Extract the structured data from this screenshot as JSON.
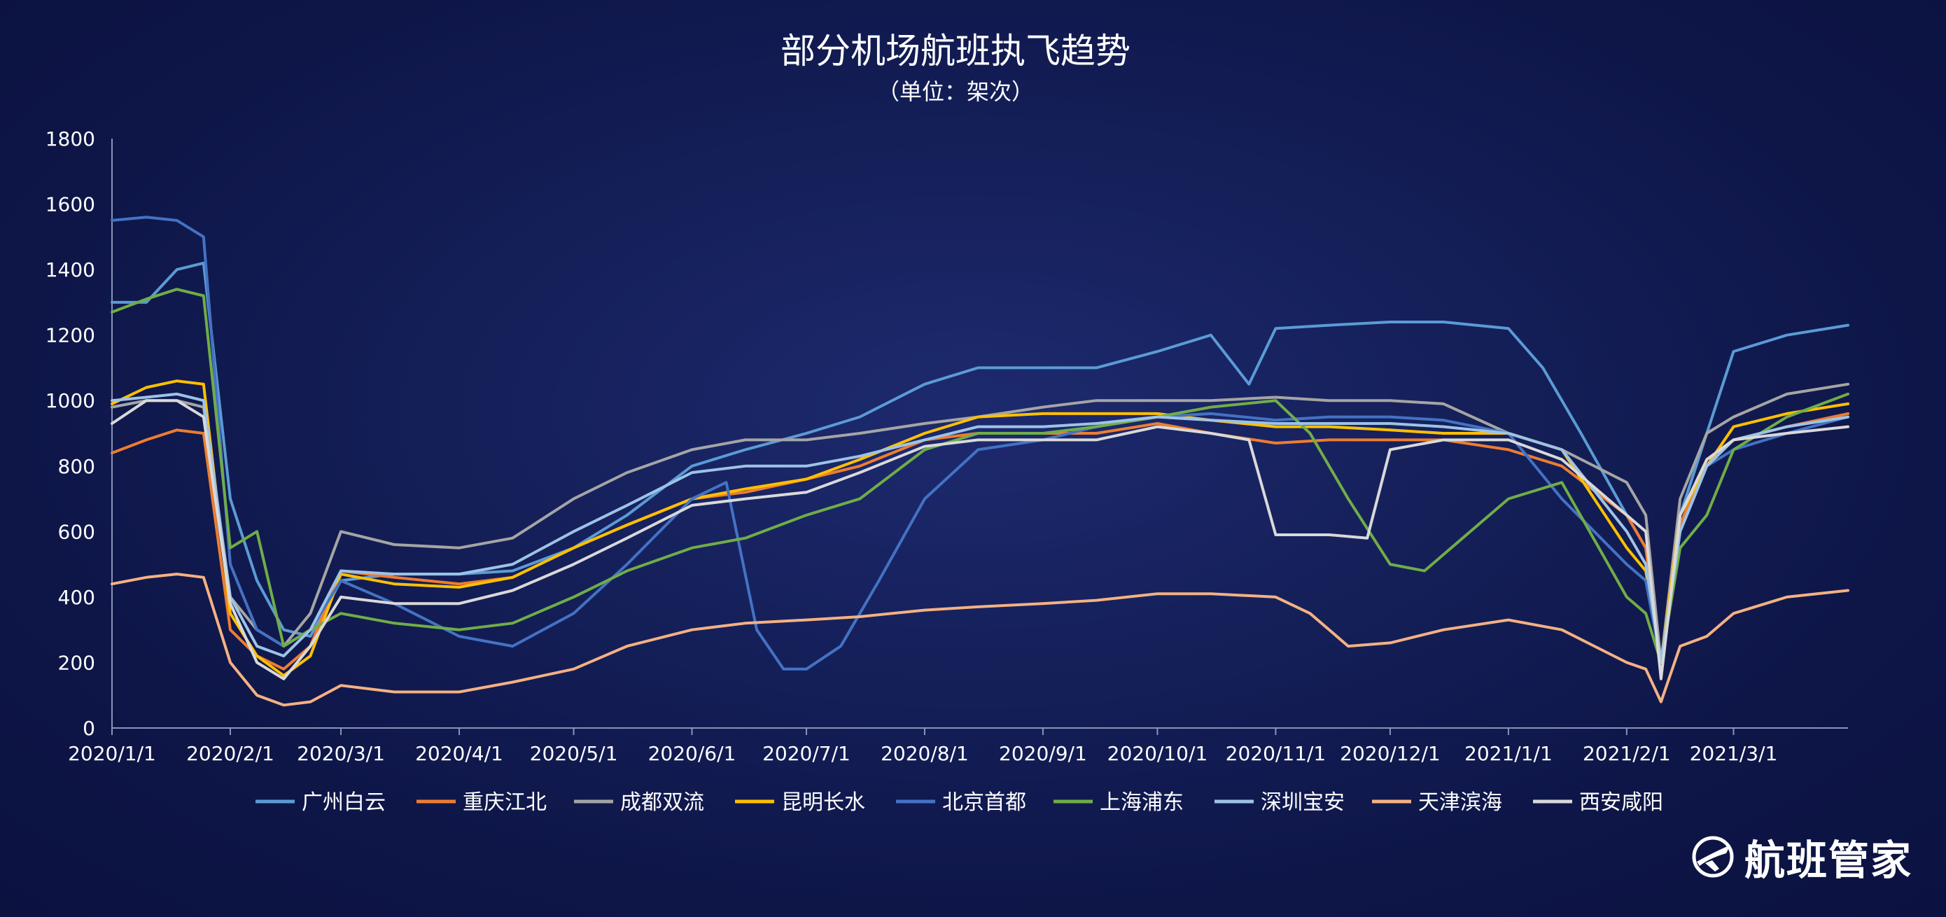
{
  "chart_data": {
    "type": "line",
    "title": "部分机场航班执飞趋势",
    "subtitle": "（单位：架次）",
    "xlabel": "",
    "ylabel": "",
    "ylim": [
      0,
      1800
    ],
    "yticks": [
      0,
      200,
      400,
      600,
      800,
      1000,
      1200,
      1400,
      1600,
      1800
    ],
    "xlim": [
      "2020-01-01",
      "2021-03-31"
    ],
    "xticks": [
      "2020/1/1",
      "2020/2/1",
      "2020/3/1",
      "2020/4/1",
      "2020/5/1",
      "2020/6/1",
      "2020/7/1",
      "2020/8/1",
      "2020/9/1",
      "2020/10/1",
      "2020/11/1",
      "2020/12/1",
      "2021/1/1",
      "2021/2/1",
      "2021/3/1"
    ],
    "xtick_dates": [
      "2020-01-01",
      "2020-02-01",
      "2020-03-01",
      "2020-04-01",
      "2020-05-01",
      "2020-06-01",
      "2020-07-01",
      "2020-08-01",
      "2020-09-01",
      "2020-10-01",
      "2020-11-01",
      "2020-12-01",
      "2021-01-01",
      "2021-02-01",
      "2021-03-01"
    ],
    "legend_position": "bottom",
    "grid": false,
    "series": [
      {
        "name": "广州白云",
        "color": "#5b9bd5",
        "x": [
          "2020-01-01",
          "2020-01-10",
          "2020-01-18",
          "2020-01-25",
          "2020-02-01",
          "2020-02-08",
          "2020-02-15",
          "2020-02-22",
          "2020-03-01",
          "2020-03-15",
          "2020-04-01",
          "2020-04-15",
          "2020-05-01",
          "2020-05-15",
          "2020-06-01",
          "2020-06-15",
          "2020-07-01",
          "2020-07-15",
          "2020-08-01",
          "2020-08-15",
          "2020-09-01",
          "2020-09-15",
          "2020-10-01",
          "2020-10-15",
          "2020-10-25",
          "2020-11-01",
          "2020-11-15",
          "2020-12-01",
          "2020-12-15",
          "2021-01-01",
          "2021-01-10",
          "2021-01-20",
          "2021-02-01",
          "2021-02-06",
          "2021-02-10",
          "2021-02-15",
          "2021-02-22",
          "2021-03-01",
          "2021-03-15",
          "2021-03-31"
        ],
        "y": [
          1300,
          1300,
          1400,
          1420,
          700,
          450,
          300,
          280,
          450,
          470,
          470,
          480,
          550,
          650,
          800,
          850,
          900,
          950,
          1050,
          1100,
          1100,
          1100,
          1150,
          1200,
          1050,
          1220,
          1230,
          1240,
          1240,
          1220,
          1100,
          900,
          650,
          550,
          200,
          650,
          900,
          1150,
          1200,
          1230
        ]
      },
      {
        "name": "重庆江北",
        "color": "#ed7d31",
        "x": [
          "2020-01-01",
          "2020-01-10",
          "2020-01-18",
          "2020-01-25",
          "2020-02-01",
          "2020-02-08",
          "2020-02-15",
          "2020-02-22",
          "2020-03-01",
          "2020-03-15",
          "2020-04-01",
          "2020-04-15",
          "2020-05-01",
          "2020-05-15",
          "2020-06-01",
          "2020-06-15",
          "2020-07-01",
          "2020-07-15",
          "2020-08-01",
          "2020-08-15",
          "2020-09-01",
          "2020-09-15",
          "2020-10-01",
          "2020-10-15",
          "2020-11-01",
          "2020-11-15",
          "2020-12-01",
          "2020-12-15",
          "2021-01-01",
          "2021-01-15",
          "2021-02-01",
          "2021-02-06",
          "2021-02-10",
          "2021-02-15",
          "2021-02-22",
          "2021-03-01",
          "2021-03-15",
          "2021-03-31"
        ],
        "y": [
          840,
          880,
          910,
          900,
          300,
          220,
          180,
          250,
          480,
          460,
          440,
          460,
          550,
          620,
          700,
          720,
          760,
          800,
          880,
          900,
          900,
          900,
          930,
          900,
          870,
          880,
          880,
          880,
          850,
          800,
          650,
          550,
          200,
          620,
          820,
          880,
          920,
          960
        ]
      },
      {
        "name": "成都双流",
        "color": "#a5a5a5",
        "x": [
          "2020-01-01",
          "2020-01-10",
          "2020-01-18",
          "2020-01-25",
          "2020-02-01",
          "2020-02-08",
          "2020-02-15",
          "2020-02-22",
          "2020-03-01",
          "2020-03-15",
          "2020-04-01",
          "2020-04-15",
          "2020-05-01",
          "2020-05-15",
          "2020-06-01",
          "2020-06-15",
          "2020-07-01",
          "2020-07-15",
          "2020-08-01",
          "2020-08-15",
          "2020-09-01",
          "2020-09-15",
          "2020-10-01",
          "2020-10-15",
          "2020-11-01",
          "2020-11-15",
          "2020-12-01",
          "2020-12-15",
          "2021-01-01",
          "2021-01-15",
          "2021-02-01",
          "2021-02-06",
          "2021-02-10",
          "2021-02-15",
          "2021-02-22",
          "2021-03-01",
          "2021-03-15",
          "2021-03-31"
        ],
        "y": [
          980,
          1000,
          1000,
          980,
          400,
          300,
          250,
          350,
          600,
          560,
          550,
          580,
          700,
          780,
          850,
          880,
          880,
          900,
          930,
          950,
          980,
          1000,
          1000,
          1000,
          1010,
          1000,
          1000,
          990,
          900,
          850,
          750,
          650,
          200,
          700,
          900,
          950,
          1020,
          1050
        ]
      },
      {
        "name": "昆明长水",
        "color": "#ffc000",
        "x": [
          "2020-01-01",
          "2020-01-10",
          "2020-01-18",
          "2020-01-25",
          "2020-02-01",
          "2020-02-08",
          "2020-02-15",
          "2020-02-22",
          "2020-03-01",
          "2020-03-15",
          "2020-04-01",
          "2020-04-15",
          "2020-05-01",
          "2020-05-15",
          "2020-06-01",
          "2020-06-15",
          "2020-07-01",
          "2020-07-15",
          "2020-08-01",
          "2020-08-15",
          "2020-09-01",
          "2020-09-15",
          "2020-10-01",
          "2020-10-15",
          "2020-11-01",
          "2020-11-15",
          "2020-12-01",
          "2020-12-15",
          "2021-01-01",
          "2021-01-15",
          "2021-02-01",
          "2021-02-06",
          "2021-02-10",
          "2021-02-15",
          "2021-02-22",
          "2021-03-01",
          "2021-03-15",
          "2021-03-31"
        ],
        "y": [
          990,
          1040,
          1060,
          1050,
          350,
          220,
          160,
          220,
          470,
          440,
          430,
          460,
          550,
          620,
          700,
          730,
          760,
          820,
          900,
          950,
          960,
          960,
          960,
          940,
          920,
          920,
          910,
          900,
          900,
          850,
          550,
          480,
          200,
          650,
          800,
          920,
          960,
          990
        ]
      },
      {
        "name": "北京首都",
        "color": "#4472c4",
        "x": [
          "2020-01-01",
          "2020-01-10",
          "2020-01-18",
          "2020-01-25",
          "2020-02-01",
          "2020-02-08",
          "2020-02-15",
          "2020-02-22",
          "2020-03-01",
          "2020-03-15",
          "2020-04-01",
          "2020-04-15",
          "2020-05-01",
          "2020-05-15",
          "2020-06-01",
          "2020-06-10",
          "2020-06-18",
          "2020-06-25",
          "2020-07-01",
          "2020-07-10",
          "2020-07-20",
          "2020-08-01",
          "2020-08-15",
          "2020-09-01",
          "2020-09-15",
          "2020-10-01",
          "2020-10-15",
          "2020-11-01",
          "2020-11-15",
          "2020-12-01",
          "2020-12-15",
          "2021-01-01",
          "2021-01-15",
          "2021-02-01",
          "2021-02-06",
          "2021-02-10",
          "2021-02-15",
          "2021-02-22",
          "2021-03-01",
          "2021-03-15",
          "2021-03-31"
        ],
        "y": [
          1550,
          1560,
          1550,
          1500,
          500,
          300,
          250,
          300,
          450,
          380,
          280,
          250,
          350,
          500,
          700,
          750,
          300,
          180,
          180,
          250,
          450,
          700,
          850,
          880,
          920,
          950,
          960,
          940,
          950,
          950,
          940,
          900,
          700,
          500,
          450,
          200,
          600,
          800,
          850,
          900,
          950
        ]
      },
      {
        "name": "上海浦东",
        "color": "#70ad47",
        "x": [
          "2020-01-01",
          "2020-01-10",
          "2020-01-18",
          "2020-01-25",
          "2020-02-01",
          "2020-02-08",
          "2020-02-15",
          "2020-02-22",
          "2020-03-01",
          "2020-03-15",
          "2020-04-01",
          "2020-04-15",
          "2020-05-01",
          "2020-05-15",
          "2020-06-01",
          "2020-06-15",
          "2020-07-01",
          "2020-07-15",
          "2020-08-01",
          "2020-08-15",
          "2020-09-01",
          "2020-09-15",
          "2020-10-01",
          "2020-10-15",
          "2020-11-01",
          "2020-11-10",
          "2020-11-20",
          "2020-12-01",
          "2020-12-10",
          "2020-12-20",
          "2021-01-01",
          "2021-01-15",
          "2021-02-01",
          "2021-02-06",
          "2021-02-10",
          "2021-02-15",
          "2021-02-22",
          "2021-03-01",
          "2021-03-15",
          "2021-03-31"
        ],
        "y": [
          1270,
          1310,
          1340,
          1320,
          550,
          600,
          250,
          300,
          350,
          320,
          300,
          320,
          400,
          480,
          550,
          580,
          650,
          700,
          850,
          900,
          900,
          920,
          950,
          980,
          1000,
          900,
          700,
          500,
          480,
          580,
          700,
          750,
          400,
          350,
          200,
          550,
          650,
          850,
          950,
          1020
        ]
      },
      {
        "name": "深圳宝安",
        "color": "#9dc3e6",
        "x": [
          "2020-01-01",
          "2020-01-10",
          "2020-01-18",
          "2020-01-25",
          "2020-02-01",
          "2020-02-08",
          "2020-02-15",
          "2020-02-22",
          "2020-03-01",
          "2020-03-15",
          "2020-04-01",
          "2020-04-15",
          "2020-05-01",
          "2020-05-15",
          "2020-06-01",
          "2020-06-15",
          "2020-07-01",
          "2020-07-15",
          "2020-08-01",
          "2020-08-15",
          "2020-09-01",
          "2020-09-15",
          "2020-10-01",
          "2020-10-15",
          "2020-11-01",
          "2020-11-15",
          "2020-12-01",
          "2020-12-15",
          "2021-01-01",
          "2021-01-15",
          "2021-02-01",
          "2021-02-06",
          "2021-02-10",
          "2021-02-15",
          "2021-02-22",
          "2021-03-01",
          "2021-03-15",
          "2021-03-31"
        ],
        "y": [
          1000,
          1010,
          1020,
          1000,
          400,
          250,
          220,
          300,
          480,
          470,
          470,
          500,
          600,
          680,
          780,
          800,
          800,
          830,
          880,
          920,
          920,
          930,
          950,
          940,
          930,
          930,
          930,
          920,
          900,
          850,
          600,
          500,
          200,
          600,
          800,
          880,
          920,
          950
        ]
      },
      {
        "name": "天津滨海",
        "color": "#f4b183",
        "x": [
          "2020-01-01",
          "2020-01-10",
          "2020-01-18",
          "2020-01-25",
          "2020-02-01",
          "2020-02-08",
          "2020-02-15",
          "2020-02-22",
          "2020-03-01",
          "2020-03-15",
          "2020-04-01",
          "2020-04-15",
          "2020-05-01",
          "2020-05-15",
          "2020-06-01",
          "2020-06-15",
          "2020-07-01",
          "2020-07-15",
          "2020-08-01",
          "2020-08-15",
          "2020-09-01",
          "2020-09-15",
          "2020-10-01",
          "2020-10-15",
          "2020-11-01",
          "2020-11-10",
          "2020-11-20",
          "2020-12-01",
          "2020-12-15",
          "2021-01-01",
          "2021-01-15",
          "2021-02-01",
          "2021-02-06",
          "2021-02-10",
          "2021-02-15",
          "2021-02-22",
          "2021-03-01",
          "2021-03-15",
          "2021-03-31"
        ],
        "y": [
          440,
          460,
          470,
          460,
          200,
          100,
          70,
          80,
          130,
          110,
          110,
          140,
          180,
          250,
          300,
          320,
          330,
          340,
          360,
          370,
          380,
          390,
          410,
          410,
          400,
          350,
          250,
          260,
          300,
          330,
          300,
          200,
          180,
          80,
          250,
          280,
          350,
          400,
          420
        ]
      },
      {
        "name": "西安咸阳",
        "color": "#d9d9d9",
        "x": [
          "2020-01-01",
          "2020-01-10",
          "2020-01-18",
          "2020-01-25",
          "2020-02-01",
          "2020-02-08",
          "2020-02-15",
          "2020-02-22",
          "2020-03-01",
          "2020-03-15",
          "2020-04-01",
          "2020-04-15",
          "2020-05-01",
          "2020-05-15",
          "2020-06-01",
          "2020-06-15",
          "2020-07-01",
          "2020-07-15",
          "2020-08-01",
          "2020-08-15",
          "2020-09-01",
          "2020-09-15",
          "2020-10-01",
          "2020-10-15",
          "2020-10-25",
          "2020-11-01",
          "2020-11-15",
          "2020-11-25",
          "2020-12-01",
          "2020-12-15",
          "2021-01-01",
          "2021-01-15",
          "2021-02-01",
          "2021-02-06",
          "2021-02-10",
          "2021-02-15",
          "2021-02-22",
          "2021-03-01",
          "2021-03-15",
          "2021-03-31"
        ],
        "y": [
          930,
          1000,
          1000,
          950,
          380,
          200,
          150,
          250,
          400,
          380,
          380,
          420,
          500,
          580,
          680,
          700,
          720,
          780,
          860,
          880,
          880,
          880,
          920,
          900,
          880,
          590,
          590,
          580,
          850,
          880,
          880,
          820,
          650,
          600,
          150,
          650,
          820,
          880,
          900,
          920
        ]
      }
    ]
  },
  "brand": {
    "logo_text": "航班管家",
    "logo_icon": "globe-plane-icon"
  }
}
